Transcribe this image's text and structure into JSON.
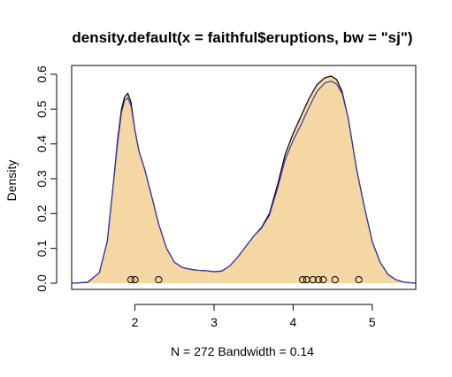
{
  "chart_data": {
    "type": "area",
    "title": "density.default(x = faithful$eruptions, bw = \"sj\")",
    "xlabel": "N = 272   Bandwidth = 0.14",
    "ylabel": "Density",
    "xlim": [
      1.2,
      5.55
    ],
    "ylim": [
      0,
      0.61
    ],
    "x_ticks": [
      2,
      3,
      4,
      5
    ],
    "x_tick_labels": [
      "2",
      "3",
      "4",
      "5"
    ],
    "y_ticks": [
      0.0,
      0.1,
      0.2,
      0.3,
      0.4,
      0.5,
      0.6
    ],
    "y_tick_labels": [
      "0.0",
      "0.1",
      "0.2",
      "0.3",
      "0.4",
      "0.5",
      "0.6"
    ],
    "grid": false,
    "fill_color": "#f5d7a4",
    "series": [
      {
        "color": "#000000",
        "x": [
          1.2,
          1.4,
          1.55,
          1.65,
          1.72,
          1.78,
          1.83,
          1.87,
          1.91,
          1.95,
          2.0,
          2.05,
          2.12,
          2.2,
          2.3,
          2.4,
          2.5,
          2.6,
          2.7,
          2.8,
          2.9,
          3.0,
          3.1,
          3.2,
          3.3,
          3.4,
          3.5,
          3.6,
          3.7,
          3.8,
          3.9,
          4.0,
          4.1,
          4.2,
          4.3,
          4.4,
          4.48,
          4.55,
          4.62,
          4.7,
          4.8,
          4.9,
          5.0,
          5.1,
          5.2,
          5.3,
          5.4,
          5.55
        ],
        "y": [
          0.0,
          0.002,
          0.03,
          0.12,
          0.27,
          0.41,
          0.5,
          0.535,
          0.545,
          0.52,
          0.44,
          0.38,
          0.33,
          0.26,
          0.17,
          0.1,
          0.06,
          0.045,
          0.04,
          0.037,
          0.036,
          0.033,
          0.035,
          0.05,
          0.075,
          0.105,
          0.135,
          0.16,
          0.2,
          0.28,
          0.37,
          0.43,
          0.48,
          0.53,
          0.57,
          0.59,
          0.595,
          0.585,
          0.55,
          0.47,
          0.33,
          0.22,
          0.12,
          0.06,
          0.025,
          0.01,
          0.003,
          0.0
        ]
      },
      {
        "color": "#3b35b8",
        "x": [
          1.2,
          1.4,
          1.55,
          1.65,
          1.72,
          1.78,
          1.83,
          1.87,
          1.91,
          1.95,
          2.0,
          2.05,
          2.12,
          2.2,
          2.3,
          2.4,
          2.5,
          2.6,
          2.7,
          2.8,
          2.9,
          3.0,
          3.1,
          3.2,
          3.3,
          3.4,
          3.5,
          3.6,
          3.7,
          3.8,
          3.9,
          4.0,
          4.1,
          4.2,
          4.3,
          4.4,
          4.48,
          4.55,
          4.62,
          4.7,
          4.8,
          4.9,
          5.0,
          5.1,
          5.2,
          5.3,
          5.4,
          5.55
        ],
        "y": [
          0.0,
          0.003,
          0.03,
          0.12,
          0.27,
          0.4,
          0.49,
          0.525,
          0.532,
          0.51,
          0.44,
          0.38,
          0.33,
          0.26,
          0.17,
          0.1,
          0.06,
          0.045,
          0.04,
          0.037,
          0.036,
          0.033,
          0.035,
          0.05,
          0.075,
          0.105,
          0.135,
          0.158,
          0.195,
          0.27,
          0.355,
          0.41,
          0.455,
          0.505,
          0.55,
          0.575,
          0.58,
          0.572,
          0.545,
          0.47,
          0.33,
          0.22,
          0.12,
          0.06,
          0.025,
          0.01,
          0.003,
          0.0
        ]
      }
    ],
    "rug_points": [
      1.95,
      2.0,
      2.3,
      4.12,
      4.17,
      4.25,
      4.32,
      4.38,
      4.53,
      4.83
    ],
    "rug_y": 0.01
  }
}
